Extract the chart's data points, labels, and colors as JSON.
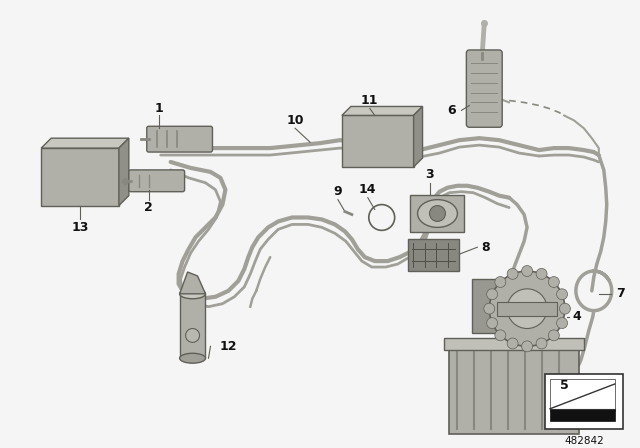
{
  "background_color": "#f5f5f5",
  "part_number": "482842",
  "fig_width": 6.4,
  "fig_height": 4.48,
  "dpi": 100
}
